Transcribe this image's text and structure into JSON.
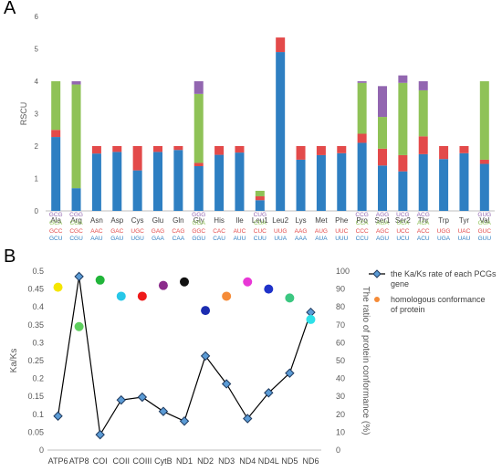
{
  "figure": {
    "panel_a_label": "A",
    "panel_b_label": "B"
  },
  "chart_data": [
    {
      "type": "bar",
      "stacked": true,
      "ylabel": "RSCU",
      "ylim": [
        0,
        6
      ],
      "yticks": [
        0,
        1,
        2,
        3,
        4,
        5,
        6
      ],
      "grid": false,
      "legend": "none",
      "colors": [
        "#2e7fc2",
        "#e34a4a",
        "#8fc257",
        "#9266b0"
      ],
      "categories": [
        "Ala",
        "Arg",
        "Asn",
        "Asp",
        "Cys",
        "Glu",
        "Gln",
        "Gly",
        "His",
        "Ile",
        "Leu1",
        "Leu2",
        "Lys",
        "Met",
        "Phe",
        "Pro",
        "Ser1",
        "Ser2",
        "Thr",
        "Trp",
        "Tyr",
        "Val"
      ],
      "series": [
        {
          "values": [
            2.28,
            0.7,
            1.77,
            1.82,
            1.25,
            1.82,
            1.88,
            1.38,
            1.73,
            1.8,
            0.33,
            4.9,
            1.58,
            1.72,
            1.78,
            2.1,
            1.4,
            1.22,
            1.75,
            1.6,
            1.78,
            1.45
          ]
        },
        {
          "values": [
            0.22,
            0.0,
            0.23,
            0.18,
            0.75,
            0.18,
            0.12,
            0.1,
            0.27,
            0.2,
            0.12,
            0.45,
            0.42,
            0.28,
            0.22,
            0.28,
            0.52,
            0.5,
            0.55,
            0.4,
            0.22,
            0.13
          ]
        },
        {
          "values": [
            1.5,
            3.2,
            0,
            0,
            0,
            0,
            0,
            2.13,
            0,
            0,
            0.17,
            0,
            0,
            0,
            0,
            1.57,
            0.98,
            2.23,
            1.42,
            0,
            0,
            2.42
          ]
        },
        {
          "values": [
            0,
            0.1,
            0,
            0,
            0,
            0,
            0,
            0.39,
            0,
            0,
            0,
            0,
            0,
            0,
            0,
            0.05,
            0.95,
            0.23,
            0.28,
            0,
            0,
            0
          ]
        }
      ],
      "codons": [
        [
          "GCU",
          "GCC",
          "GCA",
          "GCG"
        ],
        [
          "CGU",
          "CGC",
          "CGA",
          "CGG"
        ],
        [
          "AAU",
          "AAC",
          "",
          ""
        ],
        [
          "GAU",
          "GAC",
          "",
          ""
        ],
        [
          "UGU",
          "UGC",
          "",
          ""
        ],
        [
          "GAA",
          "GAG",
          "",
          ""
        ],
        [
          "CAA",
          "CAG",
          "",
          ""
        ],
        [
          "GGU",
          "GGC",
          "GGA",
          "GGG"
        ],
        [
          "CAU",
          "CAC",
          "",
          ""
        ],
        [
          "AUU",
          "AUC",
          "",
          ""
        ],
        [
          "CUU",
          "CUC",
          "CUA",
          "CUG"
        ],
        [
          "UUA",
          "UUG",
          "",
          ""
        ],
        [
          "AAA",
          "AAG",
          "",
          ""
        ],
        [
          "AUA",
          "AUG",
          "",
          ""
        ],
        [
          "UUU",
          "UUC",
          "",
          ""
        ],
        [
          "CCU",
          "CCC",
          "CCA",
          "CCG"
        ],
        [
          "AGU",
          "AGC",
          "AGA",
          "AGG"
        ],
        [
          "UCU",
          "UCC",
          "UCA",
          "UCG"
        ],
        [
          "ACU",
          "ACC",
          "ACA",
          "ACG"
        ],
        [
          "UGA",
          "UGG",
          "",
          ""
        ],
        [
          "UAU",
          "UAC",
          "",
          ""
        ],
        [
          "GUU",
          "GUC",
          "GUA",
          "GUG"
        ]
      ]
    },
    {
      "type": "line",
      "categories": [
        "ATP6",
        "ATP8",
        "COI",
        "COII",
        "COIII",
        "CytB",
        "ND1",
        "ND2",
        "ND3",
        "ND4",
        "ND4L",
        "ND5",
        "ND6"
      ],
      "ylabel": "Ka/Ks",
      "ylim": [
        0,
        0.5
      ],
      "yticks": [
        "0",
        "0.05",
        "0.1",
        "0.15",
        "0.2",
        "0.25",
        "0.3",
        "0.35",
        "0.4",
        "0.45",
        "0.5"
      ],
      "y2label": "The ratio of protein conformance (%)",
      "y2lim": [
        0,
        100
      ],
      "y2ticks": [
        0,
        10,
        20,
        30,
        40,
        50,
        60,
        70,
        80,
        90,
        100
      ],
      "grid": false,
      "legend_position": "top-right",
      "series": [
        {
          "name": "the Ka/Ks rate of each PCGs gene",
          "type": "line",
          "marker": "diamond",
          "color": "#1f3a5f",
          "values": [
            0.095,
            0.485,
            0.043,
            0.14,
            0.148,
            0.108,
            0.081,
            0.263,
            0.185,
            0.088,
            0.16,
            0.215,
            0.385
          ]
        },
        {
          "name": "homologous conformance of protein",
          "type": "scatter",
          "axis": "secondary",
          "values": [
            91,
            69,
            95,
            86,
            86,
            92,
            94,
            78,
            86,
            94,
            90,
            85,
            73
          ],
          "point_colors": [
            "#f5e600",
            "#5ecf5e",
            "#21b53a",
            "#27c7e8",
            "#ee1a1a",
            "#8b2c8b",
            "#111111",
            "#1b2cb0",
            "#f58b37",
            "#e837d6",
            "#1f32c9",
            "#3cc781",
            "#2ee0e8"
          ]
        }
      ]
    }
  ]
}
